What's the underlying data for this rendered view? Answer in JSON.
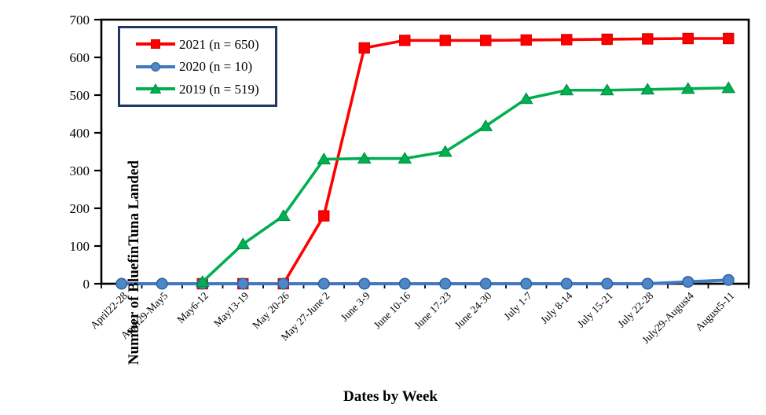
{
  "chart_data": {
    "type": "line",
    "title": "",
    "xlabel": "Dates by Week",
    "ylabel": "Number of BluefinTuna Landed",
    "ylim": [
      0,
      700
    ],
    "ytick_interval": 100,
    "grid": false,
    "legend_position": "top-left",
    "legend_border_color": "#1F3864",
    "axis_color": "#000000",
    "background_color": "#FFFFFF",
    "categories": [
      "April22-28",
      "April29-May5",
      "May6-12",
      "May13-19",
      "May 20-26",
      "May 27-June 2",
      "June 3-9",
      "June 10-16",
      "June 17-23",
      "June 24-30",
      "July 1-7",
      "July 8-14",
      "July 15-21",
      "July 22-28",
      "July29-August4",
      "August5-11"
    ],
    "series": [
      {
        "name": "2021 (n = 650)",
        "color": "#FF0000",
        "marker": "square",
        "marker_fill": "#FF0000",
        "marker_stroke": "#D40000",
        "line_width": 3.6,
        "values": [
          null,
          null,
          0,
          0,
          0,
          180,
          625,
          645,
          645,
          645,
          646,
          647,
          648,
          649,
          650,
          650
        ]
      },
      {
        "name": "2020 (n = 10)",
        "color": "#4079C0",
        "marker": "circle",
        "marker_fill": "#4E86C6",
        "marker_stroke": "#2C5F9E",
        "line_width": 4,
        "values": [
          0,
          0,
          0,
          0,
          0,
          0,
          0,
          0,
          0,
          0,
          0,
          0,
          0,
          0,
          5,
          10
        ]
      },
      {
        "name": "2019 (n = 519)",
        "color": "#00B050",
        "marker": "triangle",
        "marker_fill": "#00B050",
        "marker_stroke": "#008A3E",
        "line_width": 3.6,
        "values": [
          null,
          null,
          5,
          105,
          180,
          330,
          332,
          332,
          350,
          418,
          490,
          513,
          513,
          515,
          517,
          519
        ]
      }
    ]
  }
}
